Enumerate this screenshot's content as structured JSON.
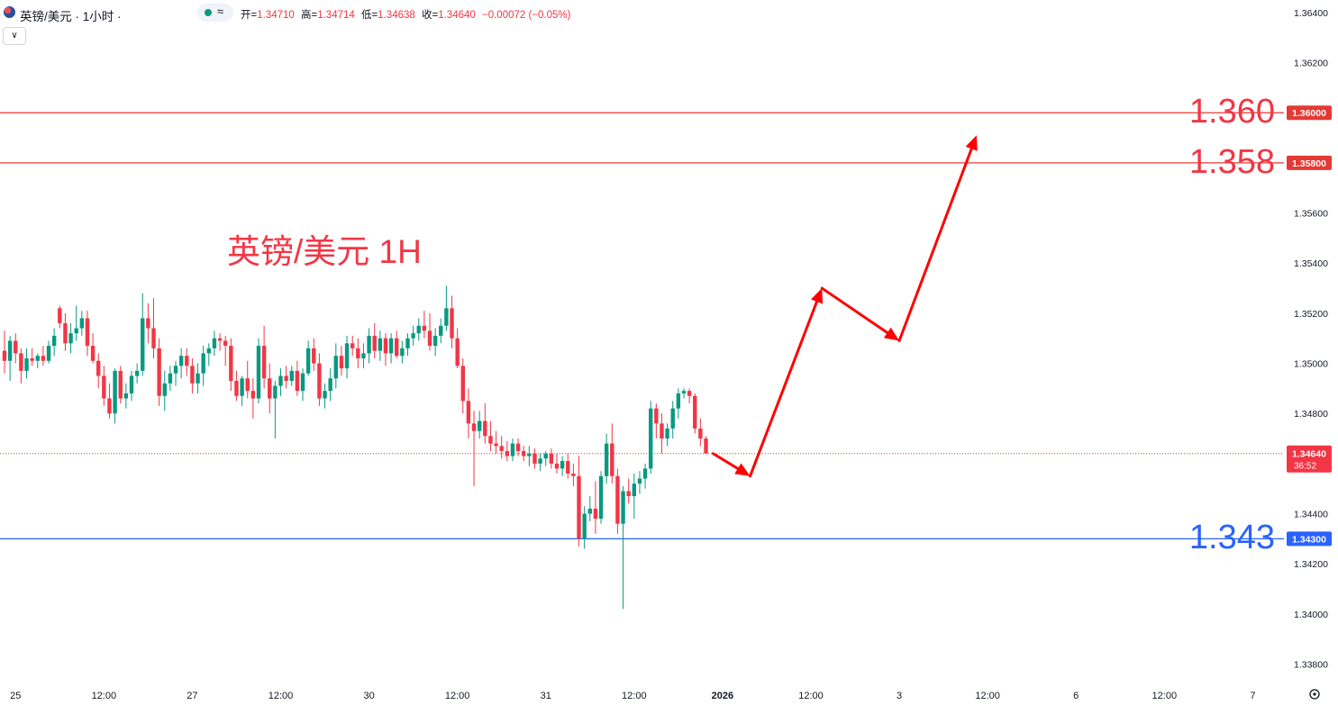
{
  "header": {
    "symbol": "英镑/美元 · 1小时 ·",
    "open_label": "开=",
    "open": "1.34710",
    "high_label": "高=",
    "high": "1.34714",
    "low_label": "低=",
    "low": "1.34638",
    "close_label": "收=",
    "close": "1.34640",
    "change": "−0.00072 (−0.05%)",
    "wave_icon": "≈",
    "collapse_icon": "∨"
  },
  "annotation": {
    "title": "英镑/美元 1H",
    "level_high": "1.360",
    "level_mid": "1.358",
    "level_low": "1.343"
  },
  "price_tag": {
    "price": "1.34640",
    "countdown": "36:52"
  },
  "colors": {
    "up": "#089981",
    "down": "#f23645",
    "red_line": "#e53935",
    "blue_line": "#2962ff",
    "arrow": "#ff0000"
  },
  "chart_data": {
    "type": "candlestick",
    "y_axis": {
      "ylim": [
        1.3373,
        1.3645
      ],
      "ticks": [
        "1.36400",
        "1.36200",
        "1.36000",
        "1.35800",
        "1.35600",
        "1.35400",
        "1.35200",
        "1.35000",
        "1.34800",
        "1.34600",
        "1.34400",
        "1.34200",
        "1.34000",
        "1.33800"
      ],
      "tick_values": [
        1.364,
        1.362,
        1.36,
        1.358,
        1.356,
        1.354,
        1.352,
        1.35,
        1.348,
        1.346,
        1.344,
        1.342,
        1.34,
        1.338
      ]
    },
    "x_axis": {
      "labels": [
        "25",
        "12:00",
        "27",
        "12:00",
        "30",
        "12:00",
        "31",
        "12:00",
        "2026",
        "12:00",
        "3",
        "12:00",
        "6",
        "12:00",
        "7"
      ],
      "label_bar_index": [
        2,
        18,
        34,
        50,
        66,
        82,
        98,
        114,
        130,
        146,
        162,
        178,
        194,
        210,
        226
      ]
    },
    "horizontal_lines": [
      {
        "price": 1.36,
        "label": "1.36000",
        "color": "#e53935"
      },
      {
        "price": 1.358,
        "label": "1.35800",
        "color": "#e53935"
      },
      {
        "price": 1.343,
        "label": "1.34300",
        "color": "#2962ff"
      }
    ],
    "last_price": 1.3464,
    "candles": [
      [
        1.3505,
        1.3513,
        1.3496,
        1.3501
      ],
      [
        1.3501,
        1.3511,
        1.3493,
        1.3509
      ],
      [
        1.3509,
        1.3512,
        1.35,
        1.3504
      ],
      [
        1.3504,
        1.3506,
        1.3492,
        1.3497
      ],
      [
        1.3497,
        1.3506,
        1.3494,
        1.3502
      ],
      [
        1.3502,
        1.3506,
        1.3499,
        1.3501
      ],
      [
        1.3501,
        1.3504,
        1.3498,
        1.3503
      ],
      [
        1.3503,
        1.3507,
        1.3499,
        1.3501
      ],
      [
        1.3501,
        1.3509,
        1.35,
        1.3507
      ],
      [
        1.3507,
        1.3514,
        1.3503,
        1.3511
      ],
      [
        1.3522,
        1.3523,
        1.3514,
        1.3516
      ],
      [
        1.3516,
        1.352,
        1.3505,
        1.3508
      ],
      [
        1.3508,
        1.3516,
        1.3504,
        1.3512
      ],
      [
        1.3512,
        1.3523,
        1.3509,
        1.3514
      ],
      [
        1.3514,
        1.3521,
        1.3511,
        1.3518
      ],
      [
        1.3518,
        1.3521,
        1.3503,
        1.3507
      ],
      [
        1.3507,
        1.3512,
        1.35,
        1.3501
      ],
      [
        1.3501,
        1.3504,
        1.349,
        1.3495
      ],
      [
        1.3495,
        1.3499,
        1.3483,
        1.3486
      ],
      [
        1.3486,
        1.3492,
        1.3478,
        1.348
      ],
      [
        1.348,
        1.3498,
        1.3476,
        1.3497
      ],
      [
        1.3497,
        1.3499,
        1.3484,
        1.3486
      ],
      [
        1.3486,
        1.3492,
        1.3482,
        1.3488
      ],
      [
        1.3488,
        1.3497,
        1.3485,
        1.3495
      ],
      [
        1.3495,
        1.35,
        1.3492,
        1.3497
      ],
      [
        1.3497,
        1.3528,
        1.3495,
        1.3518
      ],
      [
        1.3518,
        1.3524,
        1.3508,
        1.3514
      ],
      [
        1.3514,
        1.3526,
        1.3502,
        1.3506
      ],
      [
        1.3506,
        1.351,
        1.3483,
        1.3487
      ],
      [
        1.3487,
        1.3497,
        1.3481,
        1.3492
      ],
      [
        1.3492,
        1.3499,
        1.3489,
        1.3496
      ],
      [
        1.3496,
        1.3501,
        1.3491,
        1.3499
      ],
      [
        1.3499,
        1.3506,
        1.3494,
        1.3503
      ],
      [
        1.3503,
        1.3506,
        1.3495,
        1.3499
      ],
      [
        1.3499,
        1.3502,
        1.3488,
        1.3492
      ],
      [
        1.3492,
        1.35,
        1.3488,
        1.3496
      ],
      [
        1.3496,
        1.3507,
        1.3491,
        1.3504
      ],
      [
        1.3504,
        1.3508,
        1.3499,
        1.3506
      ],
      [
        1.3506,
        1.3513,
        1.3503,
        1.351
      ],
      [
        1.351,
        1.3512,
        1.3505,
        1.3509
      ],
      [
        1.3509,
        1.3511,
        1.3499,
        1.3507
      ],
      [
        1.3507,
        1.351,
        1.3489,
        1.3493
      ],
      [
        1.3493,
        1.3497,
        1.3485,
        1.3487
      ],
      [
        1.3487,
        1.3495,
        1.3483,
        1.3494
      ],
      [
        1.3494,
        1.3501,
        1.3486,
        1.3489
      ],
      [
        1.3489,
        1.3494,
        1.3478,
        1.3486
      ],
      [
        1.3486,
        1.351,
        1.3484,
        1.3507
      ],
      [
        1.3507,
        1.3515,
        1.349,
        1.3494
      ],
      [
        1.3494,
        1.35,
        1.348,
        1.3486
      ],
      [
        1.3486,
        1.3493,
        1.347,
        1.3491
      ],
      [
        1.3491,
        1.3498,
        1.3487,
        1.3495
      ],
      [
        1.3495,
        1.3499,
        1.349,
        1.3493
      ],
      [
        1.3493,
        1.3499,
        1.3491,
        1.3497
      ],
      [
        1.3497,
        1.3501,
        1.3487,
        1.3489
      ],
      [
        1.3489,
        1.3498,
        1.3485,
        1.3496
      ],
      [
        1.3496,
        1.3509,
        1.3495,
        1.3506
      ],
      [
        1.3506,
        1.351,
        1.3497,
        1.35
      ],
      [
        1.35,
        1.3504,
        1.3483,
        1.3486
      ],
      [
        1.3486,
        1.3492,
        1.3482,
        1.3489
      ],
      [
        1.3489,
        1.3498,
        1.3485,
        1.3494
      ],
      [
        1.3494,
        1.3508,
        1.349,
        1.3503
      ],
      [
        1.3503,
        1.3507,
        1.3495,
        1.3498
      ],
      [
        1.3498,
        1.3511,
        1.3494,
        1.3508
      ],
      [
        1.3508,
        1.3511,
        1.3503,
        1.3506
      ],
      [
        1.3506,
        1.351,
        1.3498,
        1.3502
      ],
      [
        1.3502,
        1.3508,
        1.3498,
        1.3504
      ],
      [
        1.3504,
        1.3514,
        1.35,
        1.3511
      ],
      [
        1.3511,
        1.3516,
        1.3502,
        1.3505
      ],
      [
        1.3505,
        1.3513,
        1.3501,
        1.351
      ],
      [
        1.351,
        1.3512,
        1.3499,
        1.3504
      ],
      [
        1.3504,
        1.3512,
        1.35,
        1.351
      ],
      [
        1.351,
        1.3513,
        1.3502,
        1.3503
      ],
      [
        1.3503,
        1.3509,
        1.35,
        1.3506
      ],
      [
        1.3506,
        1.3512,
        1.3503,
        1.351
      ],
      [
        1.351,
        1.3515,
        1.3507,
        1.3512
      ],
      [
        1.3512,
        1.3518,
        1.3509,
        1.3515
      ],
      [
        1.3515,
        1.3521,
        1.351,
        1.3513
      ],
      [
        1.3513,
        1.352,
        1.3505,
        1.3507
      ],
      [
        1.3507,
        1.3514,
        1.3503,
        1.3511
      ],
      [
        1.3511,
        1.3518,
        1.3508,
        1.3515
      ],
      [
        1.3515,
        1.3531,
        1.3513,
        1.3522
      ],
      [
        1.3522,
        1.3527,
        1.3506,
        1.351
      ],
      [
        1.351,
        1.3514,
        1.3498,
        1.3499
      ],
      [
        1.3499,
        1.3502,
        1.348,
        1.3485
      ],
      [
        1.3485,
        1.349,
        1.347,
        1.3476
      ],
      [
        1.3476,
        1.3481,
        1.3451,
        1.3473
      ],
      [
        1.3473,
        1.3481,
        1.347,
        1.3477
      ],
      [
        1.3477,
        1.3484,
        1.3468,
        1.3471
      ],
      [
        1.3471,
        1.3477,
        1.3465,
        1.3468
      ],
      [
        1.3468,
        1.3473,
        1.3464,
        1.3467
      ],
      [
        1.3467,
        1.3471,
        1.3462,
        1.3465
      ],
      [
        1.3465,
        1.3469,
        1.3461,
        1.3463
      ],
      [
        1.3463,
        1.347,
        1.3461,
        1.3468
      ],
      [
        1.3468,
        1.347,
        1.3463,
        1.3465
      ],
      [
        1.3465,
        1.3467,
        1.3461,
        1.3463
      ],
      [
        1.3463,
        1.3467,
        1.3459,
        1.3464
      ],
      [
        1.3464,
        1.3466,
        1.3458,
        1.346
      ],
      [
        1.346,
        1.3464,
        1.3457,
        1.3462
      ],
      [
        1.3462,
        1.3465,
        1.3459,
        1.3464
      ],
      [
        1.3464,
        1.3466,
        1.3458,
        1.346
      ],
      [
        1.346,
        1.3464,
        1.3456,
        1.3458
      ],
      [
        1.3458,
        1.3463,
        1.3455,
        1.3461
      ],
      [
        1.3461,
        1.3464,
        1.3454,
        1.3456
      ],
      [
        1.3456,
        1.346,
        1.3451,
        1.3455
      ],
      [
        1.3455,
        1.3463,
        1.3427,
        1.343
      ],
      [
        1.343,
        1.3443,
        1.3426,
        1.344
      ],
      [
        1.344,
        1.3447,
        1.3437,
        1.3442
      ],
      [
        1.3442,
        1.3453,
        1.3432,
        1.3438
      ],
      [
        1.3438,
        1.3457,
        1.3436,
        1.3455
      ],
      [
        1.3455,
        1.3472,
        1.3452,
        1.3468
      ],
      [
        1.3468,
        1.3476,
        1.3452,
        1.3455
      ],
      [
        1.3455,
        1.3458,
        1.3432,
        1.3436
      ],
      [
        1.3436,
        1.3451,
        1.3402,
        1.3449
      ],
      [
        1.3449,
        1.3454,
        1.3444,
        1.3447
      ],
      [
        1.3447,
        1.3456,
        1.3438,
        1.3452
      ],
      [
        1.3452,
        1.3457,
        1.3448,
        1.3454
      ],
      [
        1.3454,
        1.346,
        1.345,
        1.3458
      ],
      [
        1.3458,
        1.3485,
        1.3456,
        1.3482
      ],
      [
        1.3482,
        1.3484,
        1.347,
        1.3476
      ],
      [
        1.3476,
        1.348,
        1.3464,
        1.347
      ],
      [
        1.347,
        1.3476,
        1.3467,
        1.3474
      ],
      [
        1.3474,
        1.3485,
        1.347,
        1.3482
      ],
      [
        1.3482,
        1.349,
        1.3478,
        1.3488
      ],
      [
        1.3488,
        1.349,
        1.3486,
        1.3489
      ],
      [
        1.3489,
        1.349,
        1.3484,
        1.3487
      ],
      [
        1.3487,
        1.3488,
        1.3472,
        1.3474
      ],
      [
        1.3474,
        1.3478,
        1.3467,
        1.347
      ],
      [
        1.347,
        1.3471,
        1.3464,
        1.3464
      ]
    ]
  }
}
